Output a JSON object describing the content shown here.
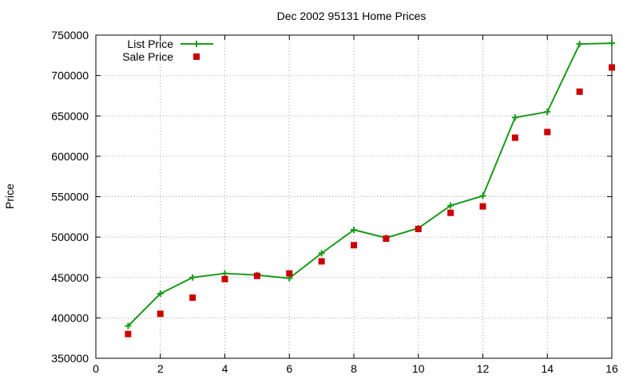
{
  "chart_data": {
    "type": "line",
    "title": "Dec 2002 95131 Home Prices",
    "xlabel": "",
    "ylabel": "Price",
    "xlim": [
      0,
      16
    ],
    "ylim": [
      350000,
      750000
    ],
    "x_ticks": [
      "0",
      "2",
      "4",
      "6",
      "8",
      "10",
      "12",
      "14",
      "16"
    ],
    "y_ticks": [
      "350000",
      "400000",
      "450000",
      "500000",
      "550000",
      "600000",
      "650000",
      "700000",
      "750000"
    ],
    "grid": true,
    "legend_position": "top-left",
    "series": [
      {
        "name": "List Price",
        "style": "lines+plus-markers",
        "color": "#1a9a1a",
        "x": [
          1,
          2,
          3,
          4,
          5,
          6,
          7,
          8,
          9,
          10,
          11,
          12,
          13,
          14,
          15,
          16
        ],
        "values": [
          390000,
          430000,
          450000,
          455000,
          453000,
          449000,
          480000,
          509000,
          499000,
          511000,
          539000,
          551000,
          648000,
          655000,
          739000,
          740000
        ]
      },
      {
        "name": "Sale Price",
        "style": "square-markers",
        "color": "#cc0000",
        "x": [
          1,
          2,
          3,
          4,
          5,
          6,
          7,
          8,
          9,
          10,
          11,
          12,
          13,
          14,
          15,
          16
        ],
        "values": [
          380000,
          405000,
          425000,
          448000,
          452000,
          455000,
          470000,
          490000,
          498000,
          510000,
          530000,
          538000,
          623000,
          630000,
          680000,
          710000
        ]
      }
    ]
  }
}
